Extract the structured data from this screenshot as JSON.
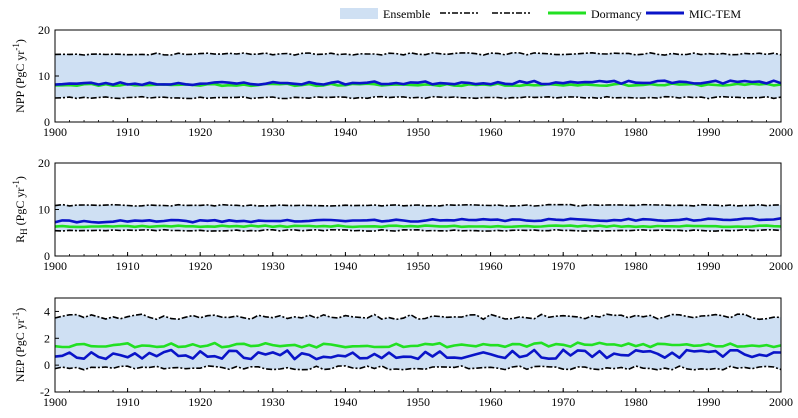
{
  "legend": {
    "ensemble_label": "Ensemble",
    "dormancy_label": "Dormancy",
    "mictem_label": "MIC-TEM",
    "ensemble_color": "#cfe0f3",
    "dormancy_color": "#22e022",
    "mictem_color": "#0a14c8",
    "bound_color": "#000000"
  },
  "chart_data": [
    {
      "type": "line",
      "panel": "npp",
      "ylabel": "NPP (PgC yr-1)",
      "ylabel_parts": {
        "main": "NPP (PgC yr",
        "sup": "-1",
        "tail": ")"
      },
      "xlim": [
        1900,
        2000
      ],
      "ylim": [
        0,
        20
      ],
      "xticks": [
        1900,
        1910,
        1920,
        1930,
        1940,
        1950,
        1960,
        1970,
        1980,
        1990,
        2000
      ],
      "yticks": [
        0,
        10,
        20
      ],
      "bands": {
        "upper": 14.8,
        "lower": 5.3,
        "upper_amp": 0.25,
        "lower_amp": 0.2
      },
      "series": [
        {
          "name": "Dormancy",
          "base": 8.1,
          "amp": 0.25,
          "seed": 11
        },
        {
          "name": "MIC-TEM",
          "base": 8.3,
          "amp": 0.35,
          "trend": 0.4,
          "seed": 23
        }
      ]
    },
    {
      "type": "line",
      "panel": "rh",
      "ylabel": "RH (PgC yr-1)",
      "ylabel_parts": {
        "main": "R",
        "sub": "H",
        "mid": " (PgC yr",
        "sup": "-1",
        "tail": ")"
      },
      "xlim": [
        1900,
        2000
      ],
      "ylim": [
        0,
        20
      ],
      "xticks": [
        1900,
        1910,
        1920,
        1930,
        1940,
        1950,
        1960,
        1970,
        1980,
        1990,
        2000
      ],
      "yticks": [
        0,
        10,
        20
      ],
      "bands": {
        "upper": 10.9,
        "lower": 5.5,
        "upper_amp": 0.15,
        "lower_amp": 0.15
      },
      "series": [
        {
          "name": "Dormancy",
          "base": 6.4,
          "amp": 0.15,
          "seed": 37
        },
        {
          "name": "MIC-TEM",
          "base": 7.4,
          "amp": 0.25,
          "trend": 0.5,
          "seed": 41
        }
      ]
    },
    {
      "type": "line",
      "panel": "nep",
      "ylabel": "NEP (PgC yr-1)",
      "ylabel_parts": {
        "main": "NEP (PgC yr",
        "sup": "-1",
        "tail": ")"
      },
      "xlim": [
        1900,
        2000
      ],
      "ylim": [
        -2,
        5
      ],
      "xticks": [
        1900,
        1910,
        1920,
        1930,
        1940,
        1950,
        1960,
        1970,
        1980,
        1990,
        2000
      ],
      "yticks": [
        -2,
        0,
        2,
        4
      ],
      "bands": {
        "upper": 3.6,
        "lower": -0.2,
        "upper_amp": 0.2,
        "lower_amp": 0.15
      },
      "series": [
        {
          "name": "Dormancy",
          "base": 1.5,
          "amp": 0.18,
          "seed": 53
        },
        {
          "name": "MIC-TEM",
          "base": 0.8,
          "amp": 0.35,
          "seed": 67
        }
      ]
    }
  ]
}
